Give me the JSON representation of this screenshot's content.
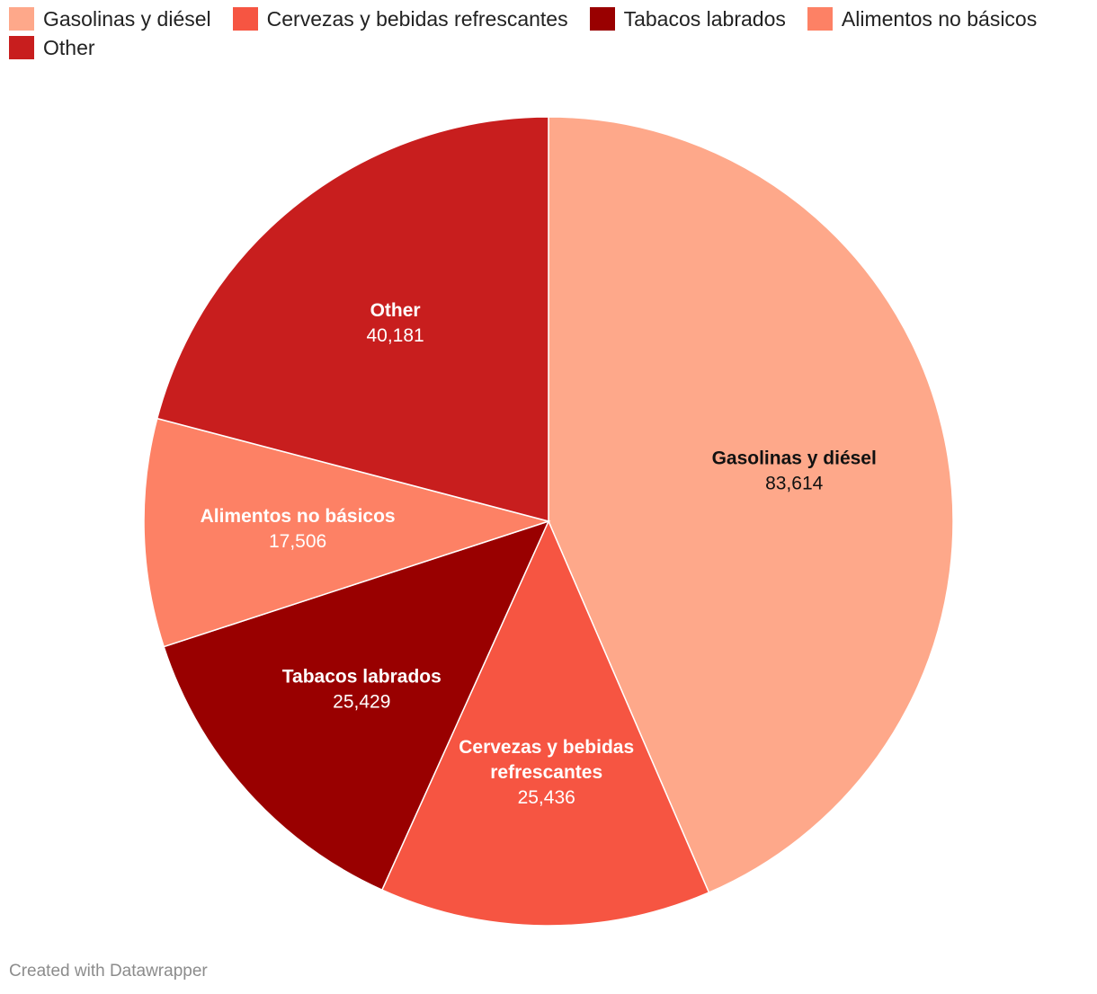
{
  "chart_data": {
    "type": "pie",
    "slices": [
      {
        "name": "Gasolinas y diésel",
        "label_lines": [
          "Gasolinas y diésel"
        ],
        "value": 83614,
        "value_label": "83,614",
        "color": "#fea88a",
        "text_color": "#111111"
      },
      {
        "name": "Cervezas y bebidas refrescantes",
        "label_lines": [
          "Cervezas y bebidas",
          "refrescantes"
        ],
        "value": 25436,
        "value_label": "25,436",
        "color": "#f65542",
        "text_color": "#ffffff"
      },
      {
        "name": "Tabacos labrados",
        "label_lines": [
          "Tabacos labrados"
        ],
        "value": 25429,
        "value_label": "25,429",
        "color": "#990000",
        "text_color": "#ffffff"
      },
      {
        "name": "Alimentos no básicos",
        "label_lines": [
          "Alimentos no básicos"
        ],
        "value": 17506,
        "value_label": "17,506",
        "color": "#fd8165",
        "text_color": "#ffffff"
      },
      {
        "name": "Other",
        "label_lines": [
          "Other"
        ],
        "value": 40181,
        "value_label": "40,181",
        "color": "#c81e1e",
        "text_color": "#ffffff"
      }
    ],
    "legend_position": "top-left",
    "start": "12 o'clock",
    "direction": "clockwise"
  },
  "footer": {
    "credit": "Created with Datawrapper"
  }
}
